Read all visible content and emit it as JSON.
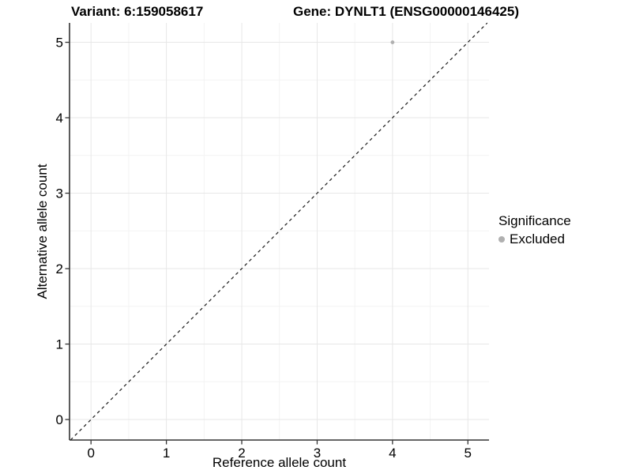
{
  "header": {
    "title_variant": "Variant: 6:159058617",
    "title_gene": "Gene: DYNLT1 (ENSG00000146425)"
  },
  "chart_data": {
    "type": "scatter",
    "xlabel": "Reference allele count",
    "ylabel": "Alternative allele count",
    "x_ticks": [
      0,
      1,
      2,
      3,
      4,
      5
    ],
    "y_ticks": [
      0,
      1,
      2,
      3,
      4,
      5
    ],
    "xlim": [
      -0.285,
      5.28
    ],
    "ylim": [
      -0.272,
      5.257
    ],
    "grid": "major and minor gridlines, light gray on white background",
    "points": [
      {
        "x": 4,
        "y": 5,
        "series": "Excluded"
      }
    ],
    "reference_line": {
      "type": "identity",
      "slope": 1,
      "intercept": 0,
      "style": "dashed"
    },
    "legend": {
      "title": "Significance",
      "position": "right",
      "entries": [
        {
          "label": "Excluded",
          "color": "#b0b0b0"
        }
      ]
    },
    "colors": {
      "point": "#b0b0b0",
      "grid_major": "#e7e7e7",
      "grid_minor": "#f3f3f3",
      "axis_line": "#333333",
      "tick_mark": "#333333",
      "dashed_line": "#1a1a1a",
      "text": "#000000",
      "background": "#ffffff"
    }
  }
}
